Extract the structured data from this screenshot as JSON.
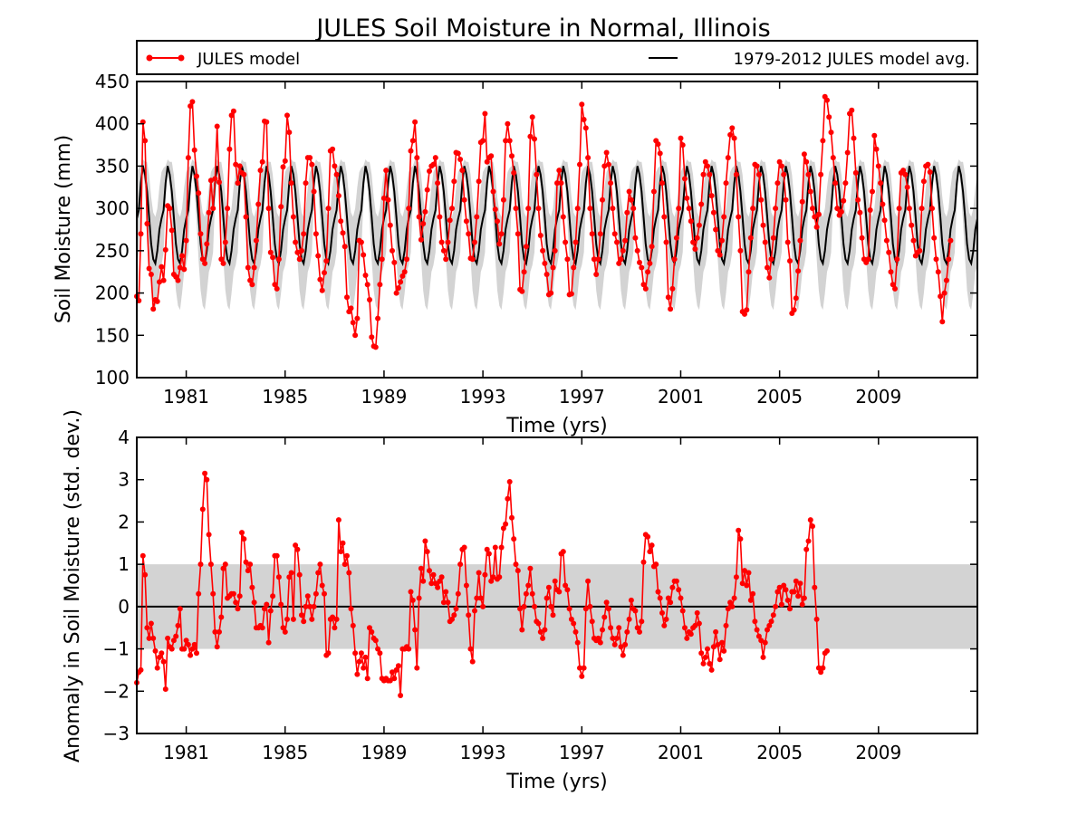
{
  "figure": {
    "title": "JULES Soil Moisture in Normal, Illinois"
  },
  "legend": {
    "entries": [
      {
        "label": "JULES model",
        "color": "#ff0000",
        "style": "line-marker"
      },
      {
        "label": "1979-2012 JULES model avg.",
        "color": "#000000",
        "style": "line"
      }
    ],
    "placement": "top, above upper panel"
  },
  "chart_data": [
    {
      "type": "line",
      "title": "",
      "xlabel": "Time (yrs)",
      "ylabel": "Soil Moisture (mm)",
      "xlim": [
        1979.0,
        2013.0
      ],
      "ylim": [
        100,
        450
      ],
      "xticks": [
        1981,
        1985,
        1989,
        1993,
        1997,
        2001,
        2005,
        2009
      ],
      "xtick_labels": [
        "1981",
        "1985",
        "1989",
        "1993",
        "1997",
        "2001",
        "2005",
        "2009"
      ],
      "yticks": [
        100,
        150,
        200,
        250,
        300,
        350,
        400,
        450
      ],
      "ytick_labels": [
        "100",
        "150",
        "200",
        "250",
        "300",
        "350",
        "400",
        "450"
      ],
      "grid": false,
      "climatology": {
        "name": "1979-2012 JULES model avg.",
        "color": "#000000",
        "monthly_mean": [
          288,
          298,
          330,
          350,
          340,
          320,
          290,
          258,
          240,
          235,
          250,
          275
        ],
        "monthly_std": [
          55,
          50,
          20,
          8,
          15,
          35,
          50,
          55,
          55,
          55,
          50,
          50
        ],
        "band_color": "#d3d3d3"
      },
      "series": [
        {
          "name": "JULES model",
          "color": "#ff0000",
          "x_start": "1979-01",
          "step": "monthly",
          "values": [
            196,
            191,
            270,
            402,
            380,
            282,
            229,
            222,
            181,
            192,
            190,
            213,
            231,
            215,
            251,
            303,
            300,
            274,
            222,
            219,
            215,
            230,
            244,
            228,
            262,
            360,
            421,
            426,
            369,
            338,
            318,
            270,
            240,
            235,
            258,
            295,
            333,
            300,
            335,
            397,
            331,
            240,
            235,
            260,
            300,
            370,
            410,
            415,
            352,
            330,
            350,
            342,
            340,
            290,
            230,
            215,
            210,
            230,
            262,
            305,
            345,
            355,
            403,
            402,
            300,
            248,
            242,
            210,
            205,
            240,
            302,
            349,
            356,
            410,
            390,
            330,
            290,
            260,
            248,
            240,
            250,
            270,
            330,
            360,
            360,
            352,
            320,
            270,
            244,
            216,
            203,
            224,
            238,
            300,
            368,
            370,
            350,
            340,
            315,
            285,
            271,
            255,
            195,
            178,
            182,
            165,
            150,
            170,
            262,
            260,
            245,
            221,
            210,
            192,
            148,
            137,
            136,
            170,
            210,
            240,
            312,
            345,
            310,
            280,
            250,
            236,
            200,
            206,
            213,
            220,
            225,
            240,
            300,
            368,
            380,
            402,
            360,
            290,
            263,
            282,
            296,
            322,
            344,
            350,
            352,
            360,
            330,
            290,
            260,
            250,
            240,
            260,
            286,
            300,
            332,
            366,
            365,
            358,
            345,
            310,
            285,
            270,
            241,
            240,
            260,
            290,
            332,
            378,
            380,
            412,
            355,
            360,
            362,
            320,
            299,
            285,
            258,
            270,
            310,
            380,
            400,
            380,
            362,
            342,
            300,
            270,
            204,
            202,
            225,
            255,
            300,
            385,
            408,
            382,
            340,
            300,
            268,
            250,
            235,
            222,
            198,
            200,
            230,
            250,
            330,
            345,
            330,
            290,
            260,
            240,
            198,
            199,
            230,
            260,
            300,
            352,
            423,
            405,
            395,
            360,
            300,
            270,
            240,
            222,
            240,
            270,
            310,
            350,
            366,
            352,
            330,
            300,
            270,
            260,
            235,
            240,
            250,
            262,
            295,
            320,
            310,
            300,
            265,
            250,
            236,
            230,
            210,
            205,
            225,
            235,
            255,
            320,
            380,
            376,
            365,
            330,
            290,
            260,
            195,
            181,
            205,
            240,
            265,
            300,
            383,
            375,
            335,
            312,
            300,
            285,
            260,
            252,
            265,
            280,
            305,
            340,
            355,
            350,
            340,
            315,
            295,
            275,
            250,
            245,
            262,
            290,
            330,
            360,
            387,
            395,
            383,
            340,
            290,
            250,
            178,
            175,
            180,
            225,
            265,
            300,
            352,
            350,
            340,
            310,
            280,
            260,
            230,
            218,
            240,
            265,
            300,
            330,
            355,
            350,
            340,
            310,
            260,
            238,
            176,
            180,
            194,
            226,
            262,
            308,
            364,
            355,
            340,
            320,
            300,
            290,
            278,
            293,
            340,
            380,
            432,
            428,
            408,
            390,
            360,
            330,
            300,
            292,
            296,
            309,
            330,
            366,
            412,
            416,
            383,
            342,
            310,
            295,
            265,
            240,
            236,
            240,
            298,
            320,
            386,
            370,
            350,
            330,
            305,
            286,
            262,
            248,
            225,
            210,
            205,
            240,
            300,
            342,
            345,
            340,
            325,
            300,
            280,
            262,
            244,
            248,
            250,
            300,
            332,
            350,
            352,
            343,
            300,
            265,
            240,
            225,
            196,
            166,
            200,
            215,
            240,
            262
          ]
        }
      ]
    },
    {
      "type": "line",
      "title": "",
      "xlabel": "Time (yrs)",
      "ylabel": "Anomaly in Soil Moisture (std. dev.)",
      "xlim": [
        1979.0,
        2013.0
      ],
      "ylim": [
        -3,
        4
      ],
      "xticks": [
        1981,
        1985,
        1989,
        1993,
        1997,
        2001,
        2005,
        2009
      ],
      "xtick_labels": [
        "1981",
        "1985",
        "1989",
        "1993",
        "1997",
        "2001",
        "2005",
        "2009"
      ],
      "yticks": [
        -3,
        -2,
        -1,
        0,
        1,
        2,
        3,
        4
      ],
      "ytick_labels": [
        "−3",
        "−2",
        "−1",
        "0",
        "1",
        "2",
        "3",
        "4"
      ],
      "grid": false,
      "band": {
        "y_from": -1,
        "y_to": 1,
        "color": "#d3d3d3"
      },
      "zero_line": {
        "y": 0,
        "color": "#000000"
      },
      "series": [
        {
          "name": "JULES model",
          "color": "#ff0000",
          "x_start": "1979-01",
          "step": "monthly",
          "values": [
            -1.8,
            -1.55,
            -1.5,
            1.2,
            0.75,
            -0.5,
            -0.75,
            -0.4,
            -0.75,
            -1.05,
            -1.45,
            -1.2,
            -1.1,
            -1.3,
            -1.95,
            -0.75,
            -0.95,
            -1.0,
            -0.8,
            -0.7,
            -0.45,
            -0.05,
            -1.0,
            -1.0,
            -0.8,
            -0.9,
            -1.15,
            -1.0,
            -0.9,
            -1.1,
            0.3,
            1.0,
            2.3,
            3.15,
            3.0,
            1.7,
            1.0,
            0.3,
            -0.6,
            -0.95,
            -0.6,
            -0.25,
            0.9,
            1.0,
            0.2,
            0.25,
            0.3,
            0.3,
            0.1,
            -0.05,
            0.25,
            1.75,
            1.6,
            1.05,
            0.85,
            1.0,
            0.45,
            0.1,
            -0.5,
            -0.5,
            -0.45,
            -0.5,
            -0.05,
            0.05,
            -0.85,
            -0.1,
            0.25,
            1.2,
            1.2,
            0.7,
            0.05,
            -0.5,
            -0.6,
            -0.3,
            0.7,
            0.8,
            -0.3,
            1.45,
            1.35,
            0.75,
            -0.2,
            -0.35,
            0.0,
            0.25,
            0.0,
            -0.3,
            0.0,
            0.3,
            0.8,
            1.0,
            0.5,
            0.3,
            -1.15,
            -1.1,
            -0.3,
            -0.25,
            -0.5,
            -0.3,
            2.05,
            1.3,
            1.5,
            1.0,
            1.2,
            0.8,
            -0.05,
            -0.45,
            -1.1,
            -1.6,
            -1.3,
            -1.1,
            -1.45,
            -1.2,
            -1.7,
            -0.5,
            -0.6,
            -0.75,
            -0.8,
            -1.0,
            -1.1,
            -1.7,
            -1.75,
            -1.7,
            -1.75,
            -1.75,
            -1.55,
            -1.7,
            -1.5,
            -1.4,
            -2.1,
            -1.0,
            -1.0,
            -0.95,
            -1.0,
            0.35,
            0.15,
            -0.55,
            -1.45,
            0.2,
            0.9,
            0.6,
            1.55,
            1.3,
            0.85,
            0.55,
            0.75,
            0.55,
            0.45,
            0.6,
            0.7,
            0.1,
            0.35,
            0.1,
            -0.35,
            -0.3,
            -0.2,
            -0.05,
            0.3,
            1.0,
            1.35,
            1.4,
            0.5,
            -0.2,
            -1.0,
            -1.3,
            -0.1,
            0.2,
            0.8,
            0.2,
            0.0,
            0.75,
            1.35,
            1.25,
            0.6,
            0.7,
            1.4,
            0.65,
            0.7,
            1.4,
            1.85,
            1.95,
            2.55,
            2.95,
            2.1,
            1.6,
            1.0,
            0.85,
            -0.05,
            -0.55,
            0.0,
            0.3,
            0.5,
            0.9,
            0.3,
            0.0,
            -0.35,
            -0.4,
            -0.6,
            -0.75,
            -0.55,
            0.2,
            0.45,
            0.0,
            -0.2,
            0.6,
            0.4,
            0.35,
            1.25,
            1.3,
            0.5,
            0.4,
            -0.05,
            -0.3,
            -0.4,
            -0.6,
            -0.85,
            -1.45,
            -1.65,
            -1.45,
            -0.05,
            0.6,
            0.0,
            -0.35,
            -0.75,
            -0.8,
            -0.75,
            -0.85,
            -0.55,
            -0.25,
            0.1,
            -0.05,
            -0.5,
            -0.75,
            -0.9,
            -0.75,
            -0.5,
            -0.95,
            -1.15,
            -0.9,
            -0.6,
            -0.3,
            0.15,
            -0.05,
            -0.1,
            -0.5,
            -0.6,
            -0.35,
            1.05,
            1.7,
            1.65,
            1.3,
            1.45,
            0.95,
            1.0,
            0.35,
            0.2,
            -0.15,
            -0.45,
            -0.3,
            0.2,
            0.1,
            0.45,
            0.6,
            0.6,
            0.4,
            0.2,
            -0.1,
            -0.5,
            -0.75,
            -0.6,
            -0.65,
            -0.5,
            -0.45,
            -0.15,
            -0.4,
            -1.1,
            -1.35,
            -1.2,
            -1.0,
            -1.35,
            -1.5,
            -0.95,
            -0.6,
            -0.9,
            -1.25,
            -0.85,
            -1.05,
            -0.45,
            -0.05,
            0.1,
            0.0,
            0.2,
            0.7,
            1.8,
            1.6,
            0.55,
            0.85,
            0.5,
            0.8,
            0.15,
            0.3,
            -0.35,
            -0.55,
            -0.7,
            -0.8,
            -1.2,
            -0.85,
            -0.55,
            -0.45,
            -0.35,
            -0.2,
            0.0,
            0.35,
            0.45,
            0.05,
            0.5,
            0.4,
            0.15,
            -0.05,
            0.35,
            0.35,
            0.6,
            0.25,
            0.55,
            0.05,
            0.2,
            1.35,
            1.55,
            2.05,
            1.9,
            0.45,
            -0.3,
            -1.45,
            -1.55,
            -1.45,
            -1.1,
            -1.05
          ]
        }
      ]
    }
  ]
}
